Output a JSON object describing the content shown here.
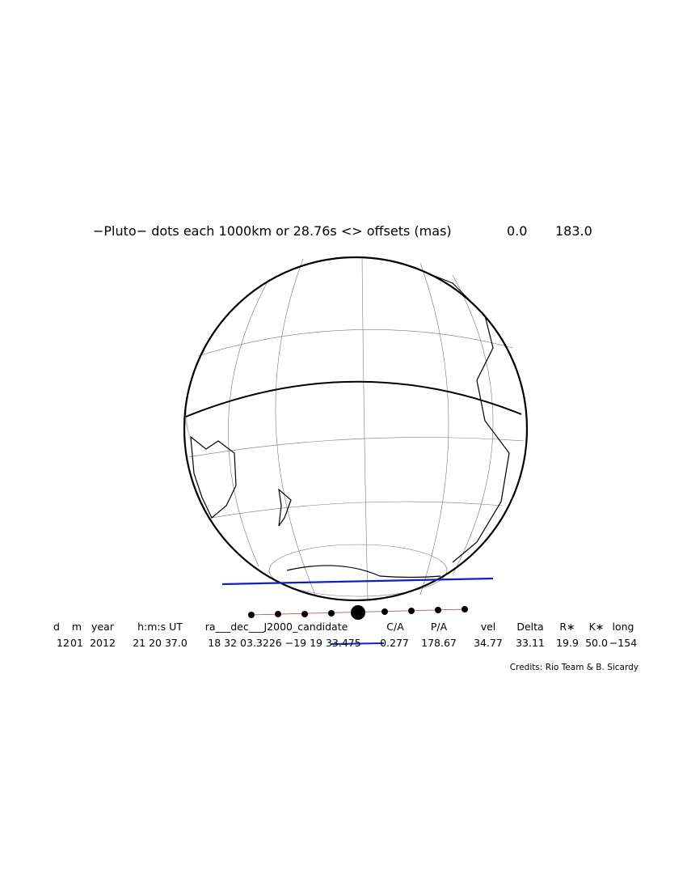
{
  "header": {
    "title": "−Pluto− dots each 1000km or 28.76s <> offsets (mas)",
    "offset_x": "0.0",
    "offset_y": "183.0"
  },
  "table": {
    "columns": [
      "d",
      "m",
      "year",
      "h:m:s UT",
      "ra___dec___J2000_candidate",
      "C/A",
      "P/A",
      "vel",
      "Delta",
      "R∗",
      "K∗",
      "long"
    ],
    "rows": [
      [
        "12",
        "01",
        "2012",
        "21 20 37.0",
        "18 32 03.3226 −19 19 33.475",
        "0.277",
        "178.67",
        "34.77",
        "33.11",
        "19.9",
        "50.0",
        "−154"
      ]
    ]
  },
  "credits": "Credits: Rio Team & B. Sicardy"
}
